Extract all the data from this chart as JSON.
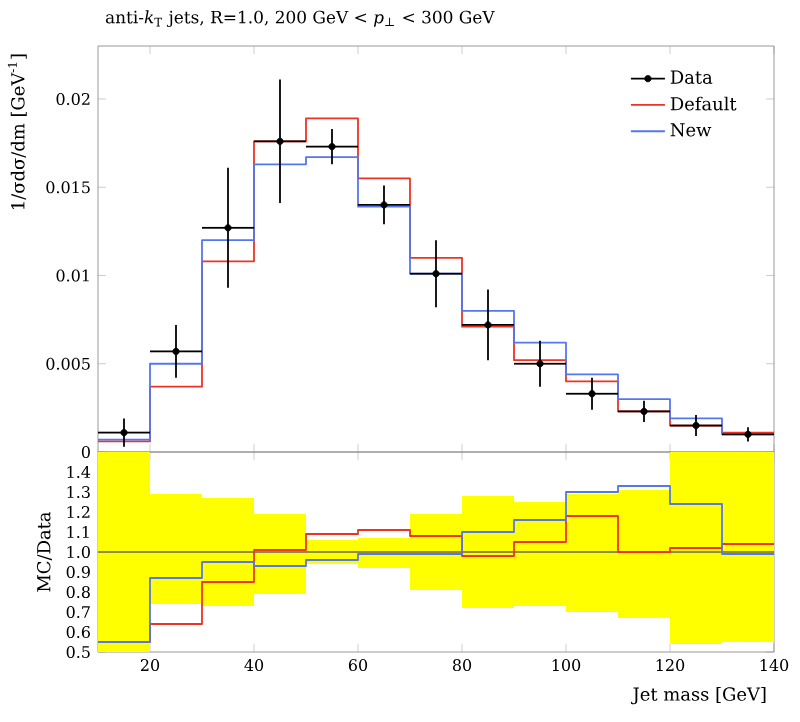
{
  "chart_data": [
    {
      "type": "histogram",
      "title": "anti-*k*$_{T}$ jets, R=1.0, 200 GeV < *p*$_{⊥}$ < 300 GeV",
      "ylabel": "1/σdσ/dm [GeV$^{-1}$]",
      "bins": [
        10,
        20,
        30,
        40,
        50,
        60,
        70,
        80,
        90,
        100,
        110,
        120,
        130,
        140
      ],
      "series": [
        {
          "name": "Data",
          "type": "scatter",
          "color": "#000000",
          "x": [
            15,
            25,
            35,
            45,
            55,
            65,
            75,
            85,
            95,
            105,
            115,
            125,
            135
          ],
          "values": [
            0.0011,
            0.0057,
            0.0127,
            0.0176,
            0.0173,
            0.014,
            0.0101,
            0.0072,
            0.005,
            0.0033,
            0.0023,
            0.0015,
            0.001
          ],
          "errors": [
            0.0008,
            0.0015,
            0.0034,
            0.0035,
            0.001,
            0.0011,
            0.0019,
            0.002,
            0.0013,
            0.0009,
            0.0006,
            0.0006,
            0.0004
          ],
          "xerrors": [
            5,
            5,
            5,
            5,
            5,
            5,
            5,
            5,
            5,
            5,
            5,
            5,
            5
          ]
        },
        {
          "name": "Default",
          "color": "#ee3322",
          "values": [
            0.0006,
            0.0037,
            0.0108,
            0.0176,
            0.0189,
            0.0155,
            0.011,
            0.0071,
            0.0052,
            0.004,
            0.0023,
            0.0015,
            0.0011
          ]
        },
        {
          "name": "New",
          "color": "#5577ee",
          "values": [
            0.0007,
            0.005,
            0.012,
            0.0163,
            0.0167,
            0.0139,
            0.0101,
            0.008,
            0.0062,
            0.0044,
            0.003,
            0.0019,
            0.001
          ]
        }
      ],
      "xlim": [
        10,
        140
      ],
      "xticks": [
        20,
        40,
        60,
        80,
        100,
        120,
        140
      ],
      "ylim": [
        0,
        0.023
      ],
      "yticks": [
        0,
        0.005,
        0.01,
        0.015,
        0.02
      ],
      "tick_labels": "y",
      "legend": "top right",
      "marker": "circle"
    },
    {
      "type": "histogram",
      "xlabel": "Jet mass [GeV]",
      "ylabel": "MC/Data",
      "bins": [
        10,
        20,
        30,
        40,
        50,
        60,
        70,
        80,
        90,
        100,
        110,
        120,
        130,
        140
      ],
      "series": [
        {
          "type": "bar",
          "color": "#ffff00",
          "x": [
            15,
            25,
            35,
            45,
            55,
            65,
            75,
            85,
            95,
            105,
            115,
            125,
            135
          ],
          "base": [
            0.5,
            0.74,
            0.73,
            0.79,
            0.94,
            0.92,
            0.81,
            0.72,
            0.73,
            0.7,
            0.67,
            0.54,
            0.55
          ],
          "values": [
            1.0,
            0.55,
            0.54,
            0.4,
            0.12,
            0.15,
            0.38,
            0.56,
            0.52,
            0.59,
            0.64,
            0.96,
            0.95
          ]
        },
        {
          "color": "#ee3322",
          "values": [
            0.55,
            0.64,
            0.85,
            1.01,
            1.09,
            1.11,
            1.08,
            0.98,
            1.05,
            1.18,
            1.0,
            1.02,
            1.04
          ]
        },
        {
          "color": "#5577ee",
          "values": [
            0.55,
            0.87,
            0.95,
            0.93,
            0.96,
            0.99,
            0.99,
            1.1,
            1.16,
            1.3,
            1.33,
            1.24,
            0.99
          ]
        }
      ],
      "ref_lines": [
        {
          "axis": "y",
          "value": 1,
          "color": "#666666"
        }
      ],
      "xlim": [
        10,
        140
      ],
      "xticks": [
        20,
        40,
        60,
        80,
        100,
        120,
        140
      ],
      "ylim": [
        0.5,
        1.5
      ],
      "yticks": [
        0.5,
        0.6,
        0.7,
        0.8,
        0.9,
        {
          "value": 1,
          "label": "1.0"
        },
        1.1,
        1.2,
        1.3,
        1.4
      ]
    }
  ]
}
